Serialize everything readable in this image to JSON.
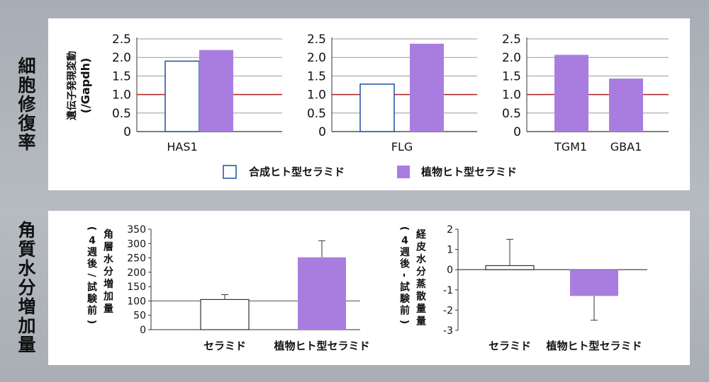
{
  "sections": {
    "top_label": "細胞修復率",
    "bottom_label": "角質水分増加量"
  },
  "colors": {
    "synthetic_border": "#1f4fa3",
    "plant_fill": "#a97de0",
    "reference_line": "#b01f1f",
    "grid": "#999999",
    "bar_border_bottom": "#333333"
  },
  "legend": {
    "synthetic": "合成ヒト型セラミド",
    "plant": "植物ヒト型セラミド"
  },
  "chart_data": [
    {
      "type": "bar",
      "ylabel_line1": "遺伝子発現変動",
      "ylabel_line2": "(/Gapdh)",
      "ylim": [
        0,
        2.5
      ],
      "yticks": [
        "0",
        "0.5",
        "1.0",
        "1.5",
        "2.0",
        "2.5"
      ],
      "reference_line": 1.0,
      "grid": true,
      "groups": [
        {
          "label": "HAS1",
          "bars": [
            {
              "series": "合成ヒト型セラミド",
              "value": 1.9
            },
            {
              "series": "植物ヒト型セラミド",
              "value": 2.2
            }
          ]
        }
      ]
    },
    {
      "type": "bar",
      "ylim": [
        0,
        2.5
      ],
      "yticks": [
        "0",
        "0.5",
        "1.0",
        "1.5",
        "2.0",
        "2.5"
      ],
      "reference_line": 1.0,
      "grid": true,
      "groups": [
        {
          "label": "FLG",
          "bars": [
            {
              "series": "合成ヒト型セラミド",
              "value": 1.28
            },
            {
              "series": "植物ヒト型セラミド",
              "value": 2.37
            }
          ]
        }
      ]
    },
    {
      "type": "bar",
      "ylim": [
        0,
        2.5
      ],
      "yticks": [
        "0",
        "0.5",
        "1.0",
        "1.5",
        "2.0",
        "2.5"
      ],
      "reference_line": 1.0,
      "grid": true,
      "groups": [
        {
          "label": "TGM1",
          "bars": [
            {
              "series": "植物ヒト型セラミド",
              "value": 2.07
            }
          ]
        },
        {
          "label": "GBA1",
          "bars": [
            {
              "series": "植物ヒト型セラミド",
              "value": 1.43
            }
          ]
        }
      ]
    },
    {
      "type": "bar",
      "ylabel_col1": "角層水分増加量",
      "ylabel_col2": "(4週後/試験前)",
      "ylim": [
        0,
        350
      ],
      "yticks": [
        "0",
        "50",
        "100",
        "150",
        "200",
        "250",
        "300",
        "350"
      ],
      "reference_line": 100,
      "categories": [
        "セラミド",
        "植物ヒト型セラミド"
      ],
      "values": [
        105,
        252
      ],
      "error_plus": [
        17,
        58
      ]
    },
    {
      "type": "bar",
      "ylabel_col1": "経皮水分蒸散量量",
      "ylabel_col2": "(4週後-試験前)",
      "ylim": [
        -3,
        2
      ],
      "yticks": [
        "-3",
        "-2",
        "-1",
        "0",
        "1",
        "2"
      ],
      "reference_line": 0,
      "categories": [
        "セラミド",
        "植物ヒト型セラミド"
      ],
      "values": [
        0.2,
        -1.3
      ],
      "error_ends": [
        1.5,
        -2.5
      ]
    }
  ]
}
